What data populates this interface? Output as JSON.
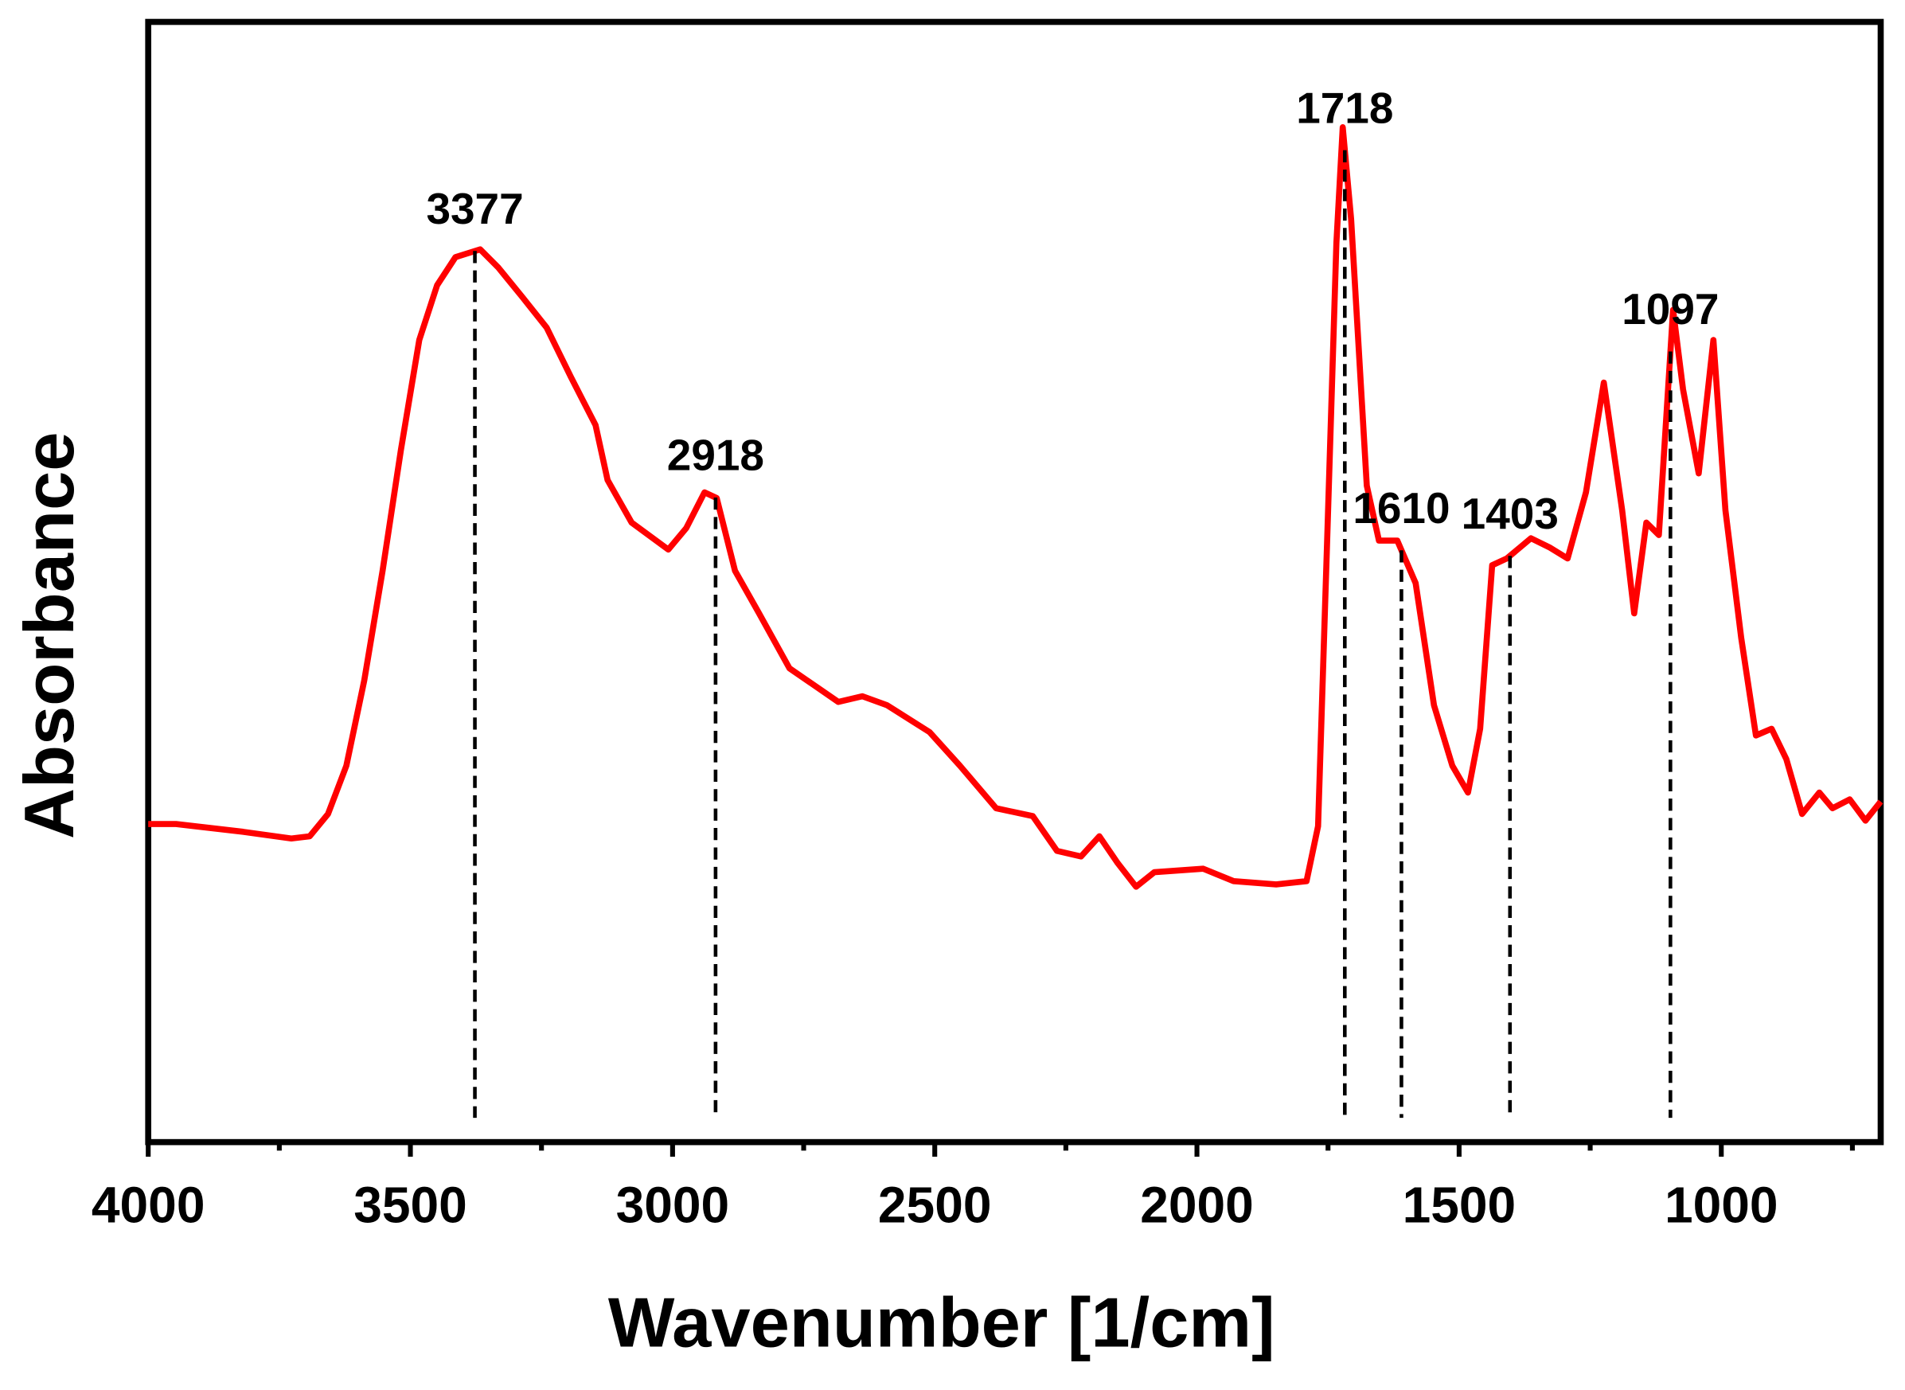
{
  "chart_data": {
    "type": "line",
    "x_label": "Wavenumber [1/cm]",
    "y_label": "Absorbance",
    "xlim": [
      4000,
      696
    ],
    "ylim": [
      0,
      100
    ],
    "xticks": [
      4000,
      3500,
      3000,
      2500,
      2000,
      1500,
      1000
    ],
    "x": [
      4000,
      3947,
      3819,
      3727,
      3692,
      3657,
      3622,
      3588,
      3553,
      3518,
      3483,
      3449,
      3414,
      3367,
      3333,
      3286,
      3240,
      3194,
      3147,
      3124,
      3078,
      3008,
      2974,
      2939,
      2916,
      2881,
      2835,
      2777,
      2684,
      2638,
      2591,
      2510,
      2452,
      2383,
      2313,
      2267,
      2221,
      2186,
      2151,
      2116,
      2081,
      1988,
      1930,
      1849,
      1791,
      1769,
      1752,
      1734,
      1722,
      1706,
      1676,
      1653,
      1618,
      1583,
      1548,
      1513,
      1483,
      1460,
      1437,
      1409,
      1363,
      1328,
      1293,
      1258,
      1224,
      1189,
      1166,
      1143,
      1119,
      1092,
      1073,
      1043,
      1015,
      992,
      962,
      934,
      904,
      876,
      846,
      813,
      788,
      755,
      725,
      696
    ],
    "series": [
      {
        "name": "Absorbance",
        "color": "#ff0000",
        "values": [
          28.4,
          28.4,
          27.7,
          27.1,
          27.3,
          29.3,
          33.6,
          41.2,
          51.0,
          61.8,
          71.6,
          76.5,
          79.0,
          79.7,
          78.1,
          75.4,
          72.7,
          68.3,
          64.0,
          59.1,
          55.3,
          52.9,
          54.8,
          58.0,
          57.5,
          51.0,
          47.2,
          42.3,
          39.3,
          39.8,
          39.0,
          36.6,
          33.6,
          29.8,
          29.1,
          26.0,
          25.5,
          27.3,
          24.9,
          22.8,
          24.1,
          24.4,
          23.3,
          23.0,
          23.3,
          28.2,
          53.1,
          80.3,
          90.6,
          82.4,
          58.6,
          53.7,
          53.7,
          49.9,
          39.0,
          33.6,
          31.2,
          36.9,
          51.5,
          52.1,
          53.9,
          53.1,
          52.1,
          58.0,
          67.8,
          56.4,
          47.2,
          55.3,
          54.2,
          74.3,
          67.2,
          59.7,
          71.6,
          56.4,
          45.0,
          36.3,
          36.9,
          34.2,
          29.3,
          31.2,
          29.8,
          30.6,
          28.7,
          30.4
        ]
      }
    ],
    "annotations": [
      3377,
      2918,
      1718,
      1610,
      1403,
      1097
    ]
  }
}
